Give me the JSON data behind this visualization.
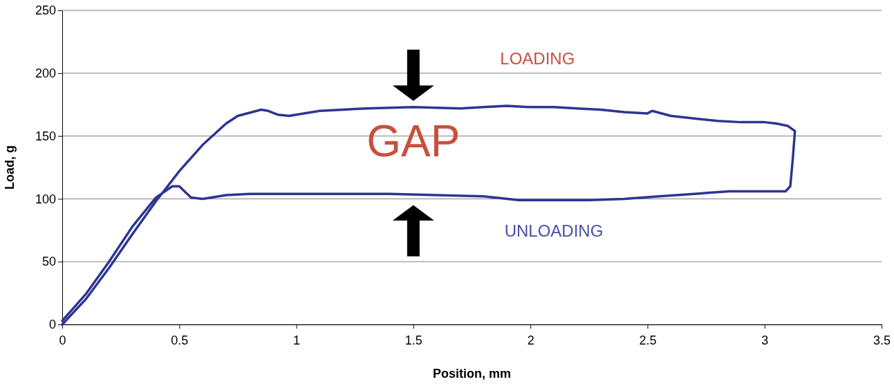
{
  "chart_data": {
    "type": "line",
    "xlabel": "Position, mm",
    "ylabel": "Load, g",
    "xlim": [
      0,
      3.5
    ],
    "xticks": [
      0,
      0.5,
      1,
      1.5,
      2,
      2.5,
      3,
      3.5
    ],
    "ylim": [
      0,
      250
    ],
    "yticks": [
      0,
      50,
      100,
      150,
      200,
      250
    ],
    "grid": "y",
    "annotations": [
      "LOADING",
      "GAP",
      "UNLOADING"
    ],
    "series": [
      {
        "color": "#2e3590",
        "x": [
          0,
          0.1,
          0.2,
          0.3,
          0.4,
          0.5,
          0.6,
          0.7,
          0.75,
          0.85,
          0.88,
          0.92,
          0.97,
          1.0,
          1.1,
          1.2,
          1.3,
          1.5,
          1.7,
          1.8,
          1.9,
          2.0,
          2.1,
          2.2,
          2.3,
          2.4,
          2.5,
          2.52,
          2.6,
          2.7,
          2.8,
          2.9,
          3.0,
          3.05,
          3.1,
          3.13,
          3.12,
          3.11,
          3.09,
          3.05,
          3.0,
          2.85,
          2.7,
          2.55,
          2.4,
          2.25,
          2.1,
          1.95,
          1.8,
          1.6,
          1.4,
          1.2,
          1.0,
          0.8,
          0.7,
          0.6,
          0.55,
          0.5,
          0.47,
          0.4,
          0.3,
          0.2,
          0.1,
          0
        ],
        "values": [
          0,
          20,
          45,
          72,
          98,
          122,
          143,
          160,
          166,
          171,
          170,
          167,
          166,
          167,
          170,
          171,
          172,
          173,
          172,
          173,
          174,
          173,
          173,
          172,
          171,
          169,
          168,
          170,
          166,
          164,
          162,
          161,
          161,
          160,
          158,
          154,
          130,
          110,
          106,
          106,
          106,
          106,
          104,
          102,
          100,
          99,
          99,
          99,
          102,
          103,
          104,
          104,
          104,
          104,
          103,
          100,
          101,
          110,
          110,
          101,
          78,
          50,
          24,
          3
        ]
      }
    ]
  }
}
